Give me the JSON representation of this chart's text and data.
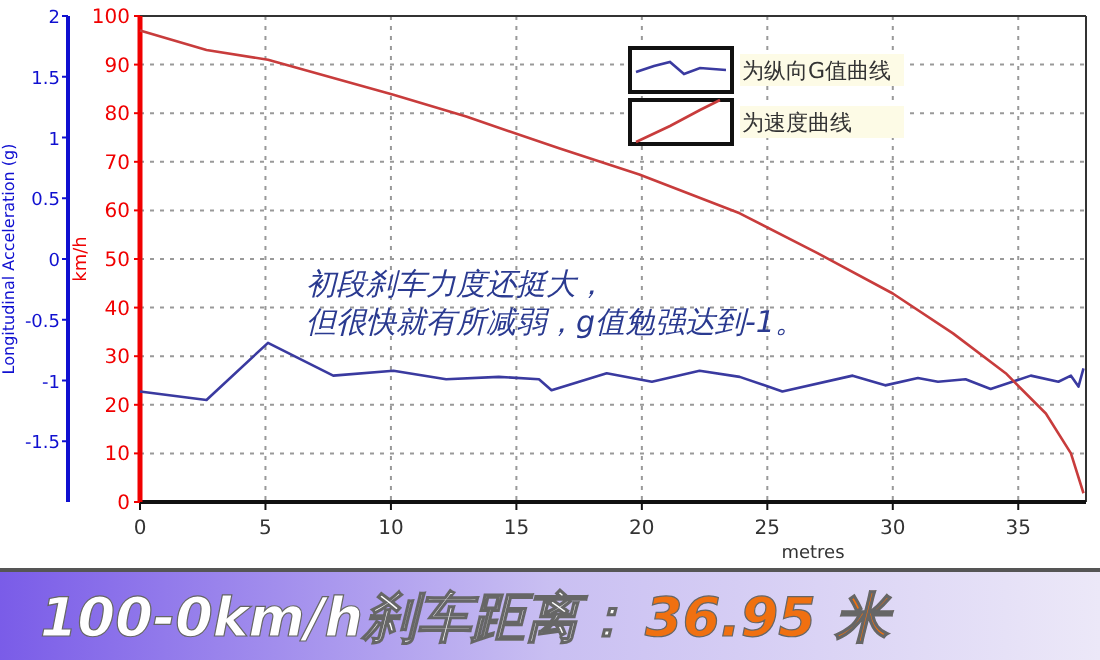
{
  "chart_data": {
    "type": "line",
    "xlabel": "metres",
    "ylabel": "km/h",
    "y2label": "Longitudinal Acceleration (g)",
    "xlim": [
      0,
      37.7
    ],
    "xticks": [
      0,
      5,
      10,
      15,
      20,
      25,
      30,
      35
    ],
    "ylim": [
      0,
      100
    ],
    "yticks": [
      0,
      10,
      20,
      30,
      40,
      50,
      60,
      70,
      80,
      90,
      100
    ],
    "y2lim": [
      -2,
      2
    ],
    "y2ticks": [
      -1.5,
      -1,
      -0.5,
      0,
      0.5,
      1,
      1.5,
      2
    ],
    "grid": true,
    "legend": "top right",
    "series": [
      {
        "name": "为纵向G值曲线",
        "color": "#3a3aa0",
        "axis": "y2",
        "x": [
          0,
          2.65,
          5.1,
          7.7,
          10.1,
          12.2,
          14.3,
          15.9,
          16.4,
          18.6,
          20.4,
          22.3,
          23.9,
          25.6,
          28.4,
          29.7,
          31.0,
          31.8,
          32.9,
          33.9,
          35.5,
          36.6,
          37.1,
          37.4,
          37.6
        ],
        "values": [
          -1.09,
          -1.16,
          -0.69,
          -0.96,
          -0.92,
          -0.99,
          -0.97,
          -0.99,
          -1.08,
          -0.94,
          -1.01,
          -0.92,
          -0.97,
          -1.09,
          -0.96,
          -1.04,
          -0.98,
          -1.01,
          -0.99,
          -1.07,
          -0.96,
          -1.01,
          -0.96,
          -1.05,
          -0.9
        ]
      },
      {
        "name": "为速度曲线",
        "color": "#c83c3c",
        "x": [
          0,
          2.65,
          5.1,
          10.1,
          13.0,
          16.7,
          19.9,
          23.9,
          27.0,
          30.0,
          32.4,
          34.5,
          36.1,
          37.1,
          37.6
        ],
        "values": [
          97,
          93,
          91,
          83.8,
          79.3,
          72.8,
          67.4,
          59.4,
          51.2,
          42.9,
          34.7,
          26.5,
          18.2,
          10,
          1.8
        ]
      }
    ],
    "annotations": [
      "初段刹车力度还挺大，",
      "但很快就有所减弱，g值勉强达到-1。",
      "100-0km/h刹车距离：",
      "36.95 米"
    ]
  }
}
